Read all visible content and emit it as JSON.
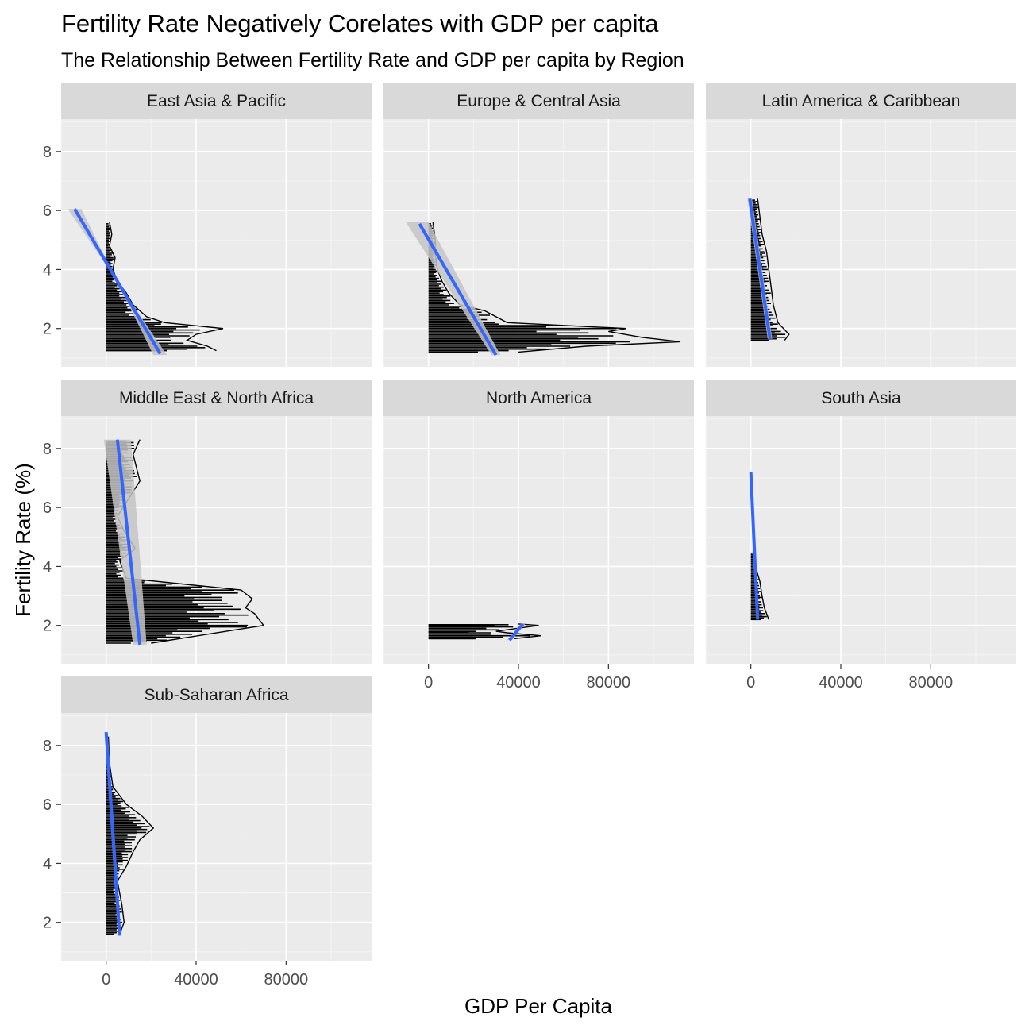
{
  "chart_data": {
    "type": "line",
    "title": "Fertility Rate Negatively Corelates with GDP per capita",
    "subtitle": "The Relationship Between Fertility Rate and GDP per capita by Region",
    "xlabel": "GDP Per Capita",
    "ylabel": "Fertility Rate (%)",
    "xlim": [
      -20000,
      118000
    ],
    "ylim": [
      0.7,
      9.1
    ],
    "x_ticks": [
      0,
      40000,
      80000
    ],
    "x_tick_labels": [
      "0",
      "40000",
      "80000"
    ],
    "y_ticks": [
      2,
      4,
      6,
      8
    ],
    "y_tick_labels": [
      "2",
      "4",
      "6",
      "8"
    ],
    "grid": true,
    "panels": [
      {
        "name": "East Asia & Pacific",
        "trend": {
          "x": [
            -14000,
            24000
          ],
          "y": [
            6.05,
            1.15
          ]
        },
        "band": [
          [
            -17000,
            6.05
          ],
          [
            -11000,
            6.05
          ],
          [
            21000,
            1.1
          ],
          [
            27000,
            1.1
          ]
        ],
        "data": [
          {
            "x": 1500,
            "y": 5.6
          },
          {
            "x": 2500,
            "y": 5.2
          },
          {
            "x": 1500,
            "y": 4.8
          },
          {
            "x": 4000,
            "y": 4.4
          },
          {
            "x": 3000,
            "y": 4.0
          },
          {
            "x": 5000,
            "y": 3.6
          },
          {
            "x": 9000,
            "y": 3.2
          },
          {
            "x": 12000,
            "y": 2.8
          },
          {
            "x": 18000,
            "y": 2.4
          },
          {
            "x": 26000,
            "y": 2.2
          },
          {
            "x": 52000,
            "y": 2.0
          },
          {
            "x": 40000,
            "y": 1.8
          },
          {
            "x": 36000,
            "y": 1.6
          },
          {
            "x": 45000,
            "y": 1.4
          },
          {
            "x": 49000,
            "y": 1.25
          }
        ]
      },
      {
        "name": "Europe & Central Asia",
        "trend": {
          "x": [
            -4000,
            30000
          ],
          "y": [
            5.55,
            1.1
          ]
        },
        "band": [
          [
            -10000,
            5.6
          ],
          [
            0,
            5.6
          ],
          [
            32000,
            1.1
          ],
          [
            28000,
            1.1
          ]
        ],
        "data": [
          {
            "x": 2000,
            "y": 5.6
          },
          {
            "x": 3000,
            "y": 5.0
          },
          {
            "x": 3000,
            "y": 4.5
          },
          {
            "x": 4000,
            "y": 4.0
          },
          {
            "x": 6000,
            "y": 3.6
          },
          {
            "x": 9000,
            "y": 3.2
          },
          {
            "x": 14000,
            "y": 2.8
          },
          {
            "x": 25000,
            "y": 2.6
          },
          {
            "x": 35000,
            "y": 2.2
          },
          {
            "x": 88000,
            "y": 2.0
          },
          {
            "x": 80000,
            "y": 1.9
          },
          {
            "x": 95000,
            "y": 1.7
          },
          {
            "x": 112000,
            "y": 1.55
          },
          {
            "x": 70000,
            "y": 1.4
          },
          {
            "x": 40000,
            "y": 1.2
          }
        ]
      },
      {
        "name": "Latin America & Caribbean",
        "trend": {
          "x": [
            -500,
            8500
          ],
          "y": [
            6.4,
            1.65
          ]
        },
        "band": [
          [
            -1500,
            6.4
          ],
          [
            500,
            6.4
          ],
          [
            9500,
            1.65
          ],
          [
            7500,
            1.65
          ]
        ],
        "data": [
          {
            "x": 3000,
            "y": 6.4
          },
          {
            "x": 4000,
            "y": 5.8
          },
          {
            "x": 5000,
            "y": 5.2
          },
          {
            "x": 7000,
            "y": 4.6
          },
          {
            "x": 8000,
            "y": 4.0
          },
          {
            "x": 9000,
            "y": 3.4
          },
          {
            "x": 10000,
            "y": 2.8
          },
          {
            "x": 12000,
            "y": 2.2
          },
          {
            "x": 17000,
            "y": 1.8
          },
          {
            "x": 15000,
            "y": 1.6
          }
        ]
      },
      {
        "name": "Middle East & North Africa",
        "trend": {
          "x": [
            5000,
            15000
          ],
          "y": [
            8.3,
            1.35
          ]
        },
        "band": [
          [
            -1000,
            8.3
          ],
          [
            11000,
            8.3
          ],
          [
            18000,
            1.35
          ],
          [
            12000,
            1.35
          ]
        ],
        "data": [
          {
            "x": 15000,
            "y": 8.3
          },
          {
            "x": 12000,
            "y": 7.8
          },
          {
            "x": 14000,
            "y": 7.2
          },
          {
            "x": 15000,
            "y": 6.9
          },
          {
            "x": 5000,
            "y": 5.7
          },
          {
            "x": 8000,
            "y": 5.2
          },
          {
            "x": 13000,
            "y": 4.6
          },
          {
            "x": 6000,
            "y": 4.2
          },
          {
            "x": 9000,
            "y": 3.6
          },
          {
            "x": 60000,
            "y": 3.2
          },
          {
            "x": 65000,
            "y": 2.9
          },
          {
            "x": 62000,
            "y": 2.6
          },
          {
            "x": 66000,
            "y": 2.4
          },
          {
            "x": 70000,
            "y": 2.0
          },
          {
            "x": 20000,
            "y": 1.4
          }
        ]
      },
      {
        "name": "North America",
        "trend": {
          "x": [
            36000,
            42000
          ],
          "y": [
            1.5,
            2.05
          ]
        },
        "band": [
          [
            35000,
            1.5
          ],
          [
            37000,
            1.5
          ],
          [
            43000,
            2.05
          ],
          [
            41000,
            2.05
          ]
        ],
        "data": [
          {
            "x": 40000,
            "y": 2.05
          },
          {
            "x": 49000,
            "y": 2.0
          },
          {
            "x": 30000,
            "y": 1.8
          },
          {
            "x": 35000,
            "y": 1.75
          },
          {
            "x": 50000,
            "y": 1.65
          },
          {
            "x": 38000,
            "y": 1.55
          }
        ]
      },
      {
        "name": "South Asia",
        "trend": {
          "x": [
            0,
            3000
          ],
          "y": [
            7.2,
            2.2
          ]
        },
        "band": [
          [
            -500,
            7.2
          ],
          [
            500,
            7.2
          ],
          [
            3500,
            2.2
          ],
          [
            2500,
            2.2
          ]
        ],
        "data": [
          {
            "x": 1000,
            "y": 4.5
          },
          {
            "x": 2000,
            "y": 4.0
          },
          {
            "x": 4000,
            "y": 3.5
          },
          {
            "x": 5000,
            "y": 3.0
          },
          {
            "x": 6000,
            "y": 2.6
          },
          {
            "x": 8000,
            "y": 2.2
          }
        ]
      },
      {
        "name": "Sub-Saharan Africa",
        "trend": {
          "x": [
            0,
            6000
          ],
          "y": [
            8.45,
            1.55
          ]
        },
        "band": [
          [
            -700,
            8.45
          ],
          [
            700,
            8.45
          ],
          [
            6700,
            1.55
          ],
          [
            5300,
            1.55
          ]
        ],
        "data": [
          {
            "x": 1000,
            "y": 8.3
          },
          {
            "x": 1500,
            "y": 7.4
          },
          {
            "x": 3000,
            "y": 6.6
          },
          {
            "x": 9000,
            "y": 6.0
          },
          {
            "x": 16000,
            "y": 5.6
          },
          {
            "x": 21000,
            "y": 5.2
          },
          {
            "x": 15000,
            "y": 4.8
          },
          {
            "x": 12000,
            "y": 4.4
          },
          {
            "x": 9000,
            "y": 3.9
          },
          {
            "x": 5000,
            "y": 3.4
          },
          {
            "x": 7000,
            "y": 2.6
          },
          {
            "x": 8000,
            "y": 2.0
          },
          {
            "x": 6000,
            "y": 1.6
          }
        ]
      }
    ]
  }
}
